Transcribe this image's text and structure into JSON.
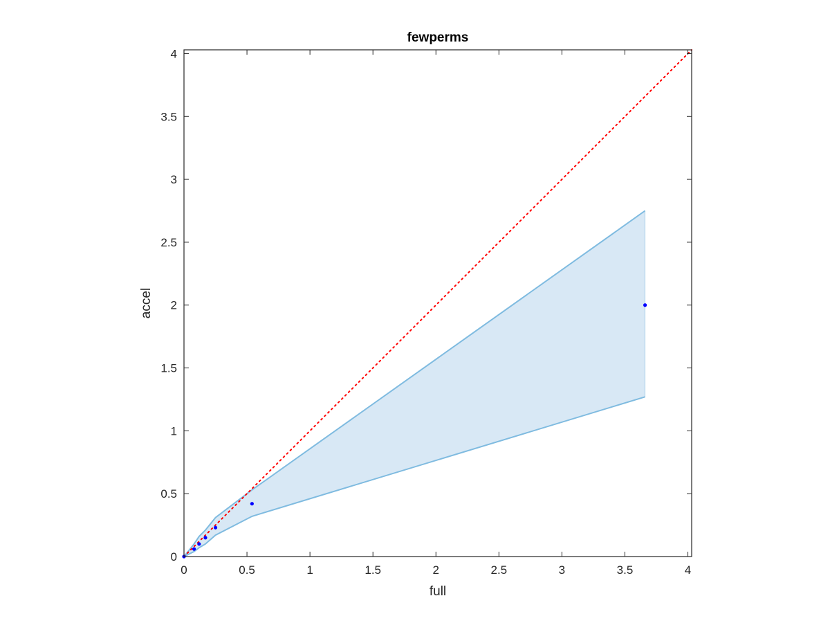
{
  "chart_data": {
    "type": "scatter",
    "title": "fewperms",
    "xlabel": "full",
    "ylabel": "accel",
    "xlim": [
      0,
      4.03
    ],
    "ylim": [
      0,
      4.03
    ],
    "xticks": [
      0,
      0.5,
      1,
      1.5,
      2,
      2.5,
      3,
      3.5,
      4
    ],
    "yticks": [
      0,
      0.5,
      1,
      1.5,
      2,
      2.5,
      3,
      3.5,
      4
    ],
    "xtick_labels": [
      "0",
      "0.5",
      "1",
      "1.5",
      "2",
      "2.5",
      "3",
      "3.5",
      "4"
    ],
    "ytick_labels": [
      "0",
      "0.5",
      "1",
      "1.5",
      "2",
      "2.5",
      "3",
      "3.5",
      "4"
    ],
    "grid": false,
    "points": {
      "x": [
        0.0,
        0.08,
        0.12,
        0.17,
        0.25,
        0.54,
        3.66
      ],
      "y": [
        0.0,
        0.06,
        0.1,
        0.15,
        0.23,
        0.42,
        2.0
      ],
      "color": "#0000ff"
    },
    "band": {
      "x": [
        0.0,
        0.08,
        0.12,
        0.17,
        0.25,
        0.54,
        3.66
      ],
      "upper": [
        0.0,
        0.1,
        0.16,
        0.21,
        0.31,
        0.53,
        2.75
      ],
      "lower": [
        0.0,
        0.04,
        0.07,
        0.1,
        0.17,
        0.32,
        1.27
      ],
      "fill_color": "#d8e8f5",
      "line_color": "#7fbbe0"
    },
    "reference_line": {
      "x": [
        0,
        4.03
      ],
      "y": [
        0,
        4.03
      ],
      "color": "#ff0000",
      "style": "dotted"
    }
  }
}
